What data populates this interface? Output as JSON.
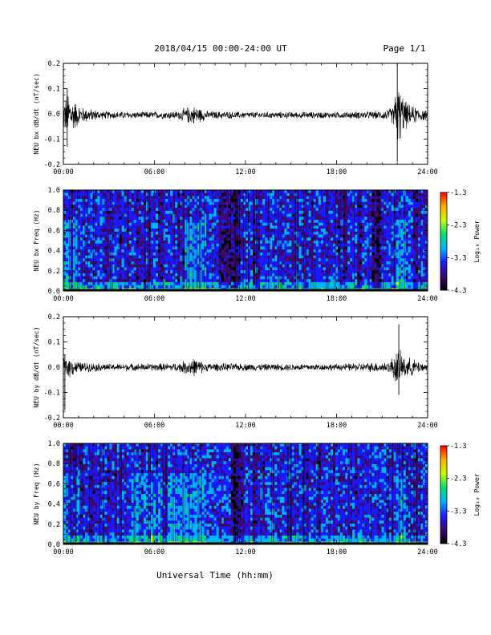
{
  "header": {
    "title": "2018/04/15  00:00-24:00 UT",
    "page": "Page 1/1"
  },
  "x_axis_title": "Universal Time (hh:mm)",
  "chart_data": [
    {
      "type": "line",
      "ylabel": "NEU bx dB/dt (nT/sec)",
      "xlim_hours": [
        0,
        24
      ],
      "x_ticks": [
        "00:00",
        "06:00",
        "12:00",
        "18:00",
        "24:00"
      ],
      "ylim": [
        -0.2,
        0.2
      ],
      "y_ticks": [
        "0.2",
        "0.1",
        "0.0",
        "-0.1",
        "-0.2"
      ],
      "baseline": -0.005,
      "envelope": [
        {
          "t": 0.0,
          "amp": 0.05
        },
        {
          "t": 0.3,
          "amp": 0.09
        },
        {
          "t": 0.6,
          "amp": 0.06
        },
        {
          "t": 1.2,
          "amp": 0.03
        },
        {
          "t": 2.5,
          "amp": 0.015
        },
        {
          "t": 5.0,
          "amp": 0.012
        },
        {
          "t": 7.5,
          "amp": 0.015
        },
        {
          "t": 8.2,
          "amp": 0.03
        },
        {
          "t": 8.7,
          "amp": 0.035
        },
        {
          "t": 9.5,
          "amp": 0.015
        },
        {
          "t": 12.0,
          "amp": 0.012
        },
        {
          "t": 14.0,
          "amp": 0.012
        },
        {
          "t": 18.0,
          "amp": 0.012
        },
        {
          "t": 21.0,
          "amp": 0.015
        },
        {
          "t": 21.7,
          "amp": 0.03
        },
        {
          "t": 22.0,
          "amp": 0.12
        },
        {
          "t": 22.3,
          "amp": 0.08
        },
        {
          "t": 22.7,
          "amp": 0.04
        },
        {
          "t": 24.0,
          "amp": 0.015
        }
      ],
      "spikes": [
        {
          "t": 0.25,
          "min": -0.13,
          "max": 0.1
        },
        {
          "t": 22.0,
          "min": -0.19,
          "max": 0.2
        }
      ]
    },
    {
      "type": "heatmap",
      "ylabel": "NEU bx Freq (Hz)",
      "xlim_hours": [
        0,
        24
      ],
      "x_ticks": [
        "00:00",
        "06:00",
        "12:00",
        "18:00",
        "24:00"
      ],
      "ylim": [
        0.0,
        1.0
      ],
      "y_ticks": [
        "1.0",
        "0.8",
        "0.6",
        "0.4",
        "0.2",
        "0.0"
      ],
      "colorbar": {
        "label": "Log₁₀ Power",
        "range": [
          -4.3,
          -1.3
        ],
        "ticks": [
          "-1.3",
          "-2.3",
          "-3.3",
          "-4.3"
        ],
        "colors": [
          "#000000",
          "#3a0a6e",
          "#1a1aff",
          "#00b4ff",
          "#00e070",
          "#c8ff00",
          "#ffb000",
          "#ff0000"
        ]
      },
      "quiet_bands": [
        {
          "t0": 10.3,
          "t1": 11.6
        },
        {
          "t0": 20.4,
          "t1": 21.0
        }
      ],
      "active_bands": [
        {
          "t0": 0.0,
          "t1": 1.0
        },
        {
          "t0": 8.0,
          "t1": 9.5
        },
        {
          "t0": 22.0,
          "t1": 22.6
        }
      ]
    },
    {
      "type": "line",
      "ylabel": "NEU by dB/dt (nT/sec)",
      "xlim_hours": [
        0,
        24
      ],
      "x_ticks": [
        "00:00",
        "06:00",
        "12:00",
        "18:00",
        "24:00"
      ],
      "ylim": [
        -0.2,
        0.2
      ],
      "y_ticks": [
        "0.2",
        "0.1",
        "0.0",
        "-0.1",
        "-0.2"
      ],
      "baseline": 0.0,
      "envelope": [
        {
          "t": 0.0,
          "amp": 0.03
        },
        {
          "t": 0.3,
          "amp": 0.04
        },
        {
          "t": 1.0,
          "amp": 0.02
        },
        {
          "t": 3.0,
          "amp": 0.012
        },
        {
          "t": 7.5,
          "amp": 0.015
        },
        {
          "t": 8.5,
          "amp": 0.035
        },
        {
          "t": 9.5,
          "amp": 0.015
        },
        {
          "t": 12.0,
          "amp": 0.013
        },
        {
          "t": 18.0,
          "amp": 0.012
        },
        {
          "t": 21.5,
          "amp": 0.02
        },
        {
          "t": 22.0,
          "amp": 0.07
        },
        {
          "t": 22.5,
          "amp": 0.04
        },
        {
          "t": 24.0,
          "amp": 0.012
        }
      ],
      "spikes": [
        {
          "t": 0.1,
          "min": -0.17,
          "max": 0.05
        },
        {
          "t": 22.1,
          "min": -0.11,
          "max": 0.17
        }
      ]
    },
    {
      "type": "heatmap",
      "ylabel": "NEU by Freq (Hz)",
      "xlim_hours": [
        0,
        24
      ],
      "x_ticks": [
        "00:00",
        "06:00",
        "12:00",
        "18:00",
        "24:00"
      ],
      "ylim": [
        0.0,
        1.0
      ],
      "y_ticks": [
        "1.0",
        "0.8",
        "0.6",
        "0.4",
        "0.2",
        "0.0"
      ],
      "colorbar": {
        "label": "Log₁₀ Power",
        "range": [
          -4.3,
          -1.3
        ],
        "ticks": [
          "-1.3",
          "-2.3",
          "-3.3",
          "-4.3"
        ],
        "colors": [
          "#000000",
          "#3a0a6e",
          "#1a1aff",
          "#00b4ff",
          "#00e070",
          "#c8ff00",
          "#ffb000",
          "#ff0000"
        ]
      },
      "quiet_bands": [
        {
          "t0": 11.0,
          "t1": 11.8
        }
      ],
      "active_bands": [
        {
          "t0": 0.0,
          "t1": 1.2
        },
        {
          "t0": 4.5,
          "t1": 9.5
        },
        {
          "t0": 22.0,
          "t1": 22.6
        }
      ]
    }
  ]
}
